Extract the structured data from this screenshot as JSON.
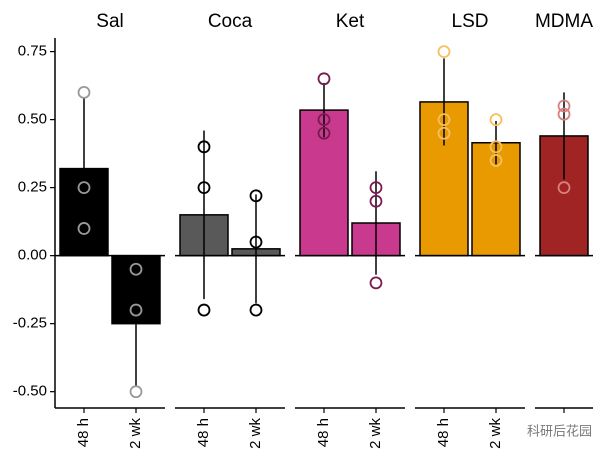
{
  "chart_data": [
    {
      "type": "bar",
      "title": "Sal",
      "categories": [
        "48 h",
        "2 wk"
      ],
      "values": [
        0.32,
        -0.25
      ],
      "errors": [
        0.26,
        0.23
      ],
      "points": [
        [
          0.6,
          0.25,
          0.1
        ],
        [
          -0.05,
          -0.2,
          -0.5
        ]
      ],
      "color": "#000000",
      "point_color": "#999999",
      "ylim": [
        -0.56,
        0.8
      ],
      "yticks": [
        0.75,
        {
          "value": 0.5,
          "label": "0.50"
        },
        0.25,
        {
          "value": 0,
          "label": "0.00"
        },
        -0.25,
        {
          "value": -0.5,
          "label": "-0.50"
        }
      ]
    },
    {
      "type": "bar",
      "title": "Coca",
      "categories": [
        "48 h",
        "2 wk"
      ],
      "values": [
        0.15,
        0.025
      ],
      "errors": [
        0.31,
        0.2
      ],
      "points": [
        [
          0.4,
          0.25,
          -0.2
        ],
        [
          0.22,
          0.05,
          -0.2
        ]
      ],
      "color": "#595959",
      "point_color": "#000000"
    },
    {
      "type": "bar",
      "title": "Ket",
      "categories": [
        "48 h",
        "2 wk"
      ],
      "values": [
        0.535,
        0.12
      ],
      "errors": [
        0.1,
        0.19
      ],
      "points": [
        [
          0.65,
          0.5,
          0.45
        ],
        [
          0.25,
          0.2,
          -0.1
        ]
      ],
      "color": "#c93a8e",
      "point_color": "#7a1a50"
    },
    {
      "type": "bar",
      "title": "LSD",
      "categories": [
        "48 h",
        "2 wk"
      ],
      "values": [
        0.565,
        0.415
      ],
      "errors": [
        0.16,
        0.08
      ],
      "points": [
        [
          0.75,
          0.5,
          0.45
        ],
        [
          0.5,
          0.4,
          0.35
        ]
      ],
      "color": "#e89a00",
      "point_color": "#f5c060"
    },
    {
      "type": "bar",
      "title": "MDMA",
      "categories": [
        null
      ],
      "values": [
        0.44
      ],
      "errors": [
        0.16
      ],
      "points": [
        [
          0.55,
          0.52,
          0.25
        ]
      ],
      "color": "#a02424",
      "point_color": "#d88080"
    }
  ],
  "watermark": "科研后花园"
}
